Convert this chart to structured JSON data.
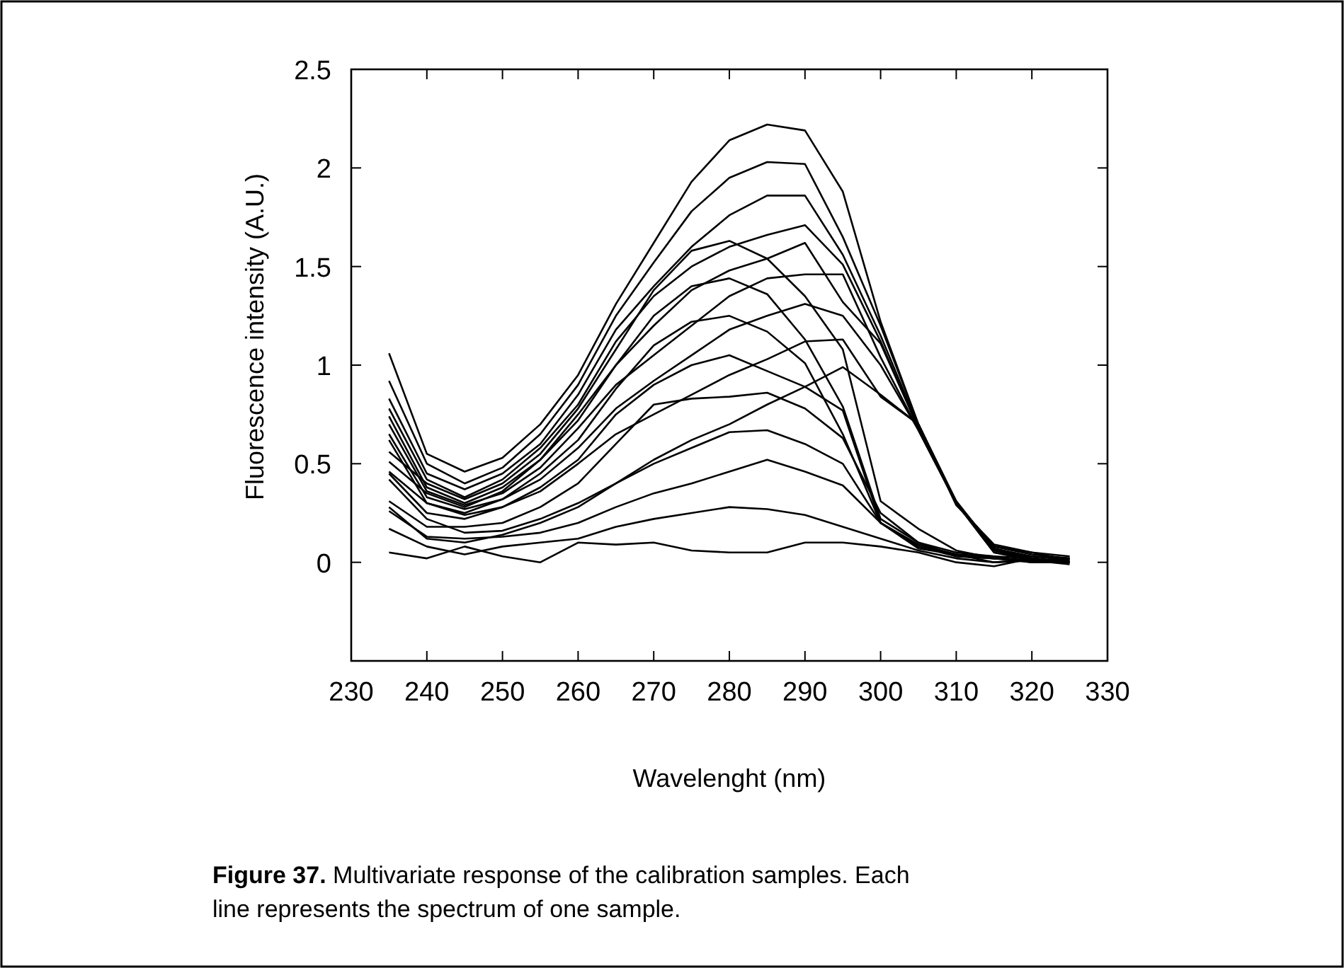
{
  "chart_data": {
    "type": "line",
    "xlabel": "Wavelenght (nm)",
    "ylabel": "Fluorescence intensity (A.U.)",
    "annotations": [
      "Figure 37. Multivariate response of the calibration samples. Each line represents the spectrum of one sample."
    ],
    "x": [
      235,
      240,
      245,
      250,
      255,
      260,
      265,
      270,
      275,
      280,
      285,
      290,
      295,
      300,
      305,
      310,
      315,
      320,
      325
    ],
    "xlim": [
      230,
      330
    ],
    "xticks": [
      230,
      240,
      250,
      260,
      270,
      280,
      290,
      300,
      310,
      320,
      330
    ],
    "ylim": [
      -0.5,
      2.5
    ],
    "yticks": [
      0,
      0.5,
      1,
      1.5,
      2,
      2.5
    ],
    "grid": false,
    "marker": "none",
    "line_style": "solid",
    "series": [
      {
        "color": "#000000",
        "values": [
          1.06,
          0.55,
          0.46,
          0.53,
          0.7,
          0.95,
          1.31,
          1.62,
          1.93,
          2.14,
          2.22,
          2.19,
          1.88,
          1.22,
          0.7,
          0.29,
          0.09,
          0.05,
          0.03
        ]
      },
      {
        "color": "#000000",
        "values": [
          0.92,
          0.5,
          0.4,
          0.48,
          0.65,
          0.9,
          1.25,
          1.52,
          1.78,
          1.95,
          2.03,
          2.02,
          1.65,
          1.2,
          0.7,
          0.3,
          0.08,
          0.04,
          0.02
        ]
      },
      {
        "color": "#000000",
        "values": [
          0.83,
          0.45,
          0.37,
          0.45,
          0.6,
          0.85,
          1.18,
          1.4,
          1.6,
          1.76,
          1.86,
          1.86,
          1.56,
          1.15,
          0.69,
          0.3,
          0.08,
          0.05,
          0.01
        ]
      },
      {
        "color": "#000000",
        "values": [
          0.78,
          0.42,
          0.33,
          0.42,
          0.58,
          0.8,
          1.12,
          1.35,
          1.5,
          1.6,
          1.66,
          1.71,
          1.51,
          1.12,
          0.68,
          0.3,
          0.07,
          0.03,
          0.02
        ]
      },
      {
        "color": "#000000",
        "values": [
          0.74,
          0.38,
          0.3,
          0.38,
          0.52,
          0.75,
          1.0,
          1.2,
          1.38,
          1.48,
          1.54,
          1.62,
          1.32,
          1.11,
          0.68,
          0.31,
          0.07,
          0.02,
          0.0
        ]
      },
      {
        "color": "#000000",
        "values": [
          0.7,
          0.36,
          0.29,
          0.35,
          0.48,
          0.68,
          0.9,
          1.05,
          1.2,
          1.35,
          1.44,
          1.46,
          1.46,
          1.04,
          0.67,
          0.3,
          0.06,
          0.03,
          0.01
        ]
      },
      {
        "color": "#000000",
        "values": [
          0.65,
          0.33,
          0.27,
          0.32,
          0.42,
          0.58,
          0.78,
          0.92,
          1.05,
          1.18,
          1.25,
          1.31,
          1.25,
          1.0,
          0.67,
          0.3,
          0.05,
          0.02,
          0.0
        ]
      },
      {
        "color": "#000000",
        "values": [
          0.62,
          0.3,
          0.24,
          0.28,
          0.36,
          0.5,
          0.65,
          0.75,
          0.85,
          0.95,
          1.03,
          1.12,
          1.13,
          0.84,
          0.7,
          0.3,
          0.05,
          0.01,
          -0.01
        ]
      },
      {
        "color": "#000000",
        "values": [
          0.42,
          0.22,
          0.15,
          0.16,
          0.22,
          0.3,
          0.4,
          0.52,
          0.62,
          0.7,
          0.8,
          0.89,
          0.99,
          0.85,
          0.7,
          0.31,
          0.06,
          0.02,
          0.0
        ]
      },
      {
        "color": "#000000",
        "values": [
          0.56,
          0.4,
          0.32,
          0.4,
          0.55,
          0.78,
          1.08,
          1.38,
          1.58,
          1.63,
          1.54,
          1.35,
          1.08,
          0.31,
          0.17,
          0.06,
          0.02,
          0.01,
          0.0
        ]
      },
      {
        "color": "#000000",
        "values": [
          0.51,
          0.35,
          0.28,
          0.36,
          0.52,
          0.72,
          1.0,
          1.25,
          1.4,
          1.44,
          1.36,
          1.13,
          0.79,
          0.22,
          0.1,
          0.05,
          0.03,
          0.02,
          0.0
        ]
      },
      {
        "color": "#000000",
        "values": [
          0.46,
          0.3,
          0.25,
          0.32,
          0.45,
          0.62,
          0.88,
          1.1,
          1.22,
          1.25,
          1.17,
          1.01,
          0.65,
          0.2,
          0.09,
          0.04,
          0.02,
          0.01,
          0.0
        ]
      },
      {
        "color": "#000000",
        "values": [
          0.45,
          0.25,
          0.22,
          0.28,
          0.38,
          0.52,
          0.75,
          0.9,
          1.0,
          1.05,
          0.97,
          0.89,
          0.77,
          0.2,
          0.08,
          0.04,
          0.03,
          0.0,
          0.02
        ]
      },
      {
        "color": "#000000",
        "values": [
          0.31,
          0.18,
          0.18,
          0.2,
          0.28,
          0.4,
          0.6,
          0.8,
          0.83,
          0.84,
          0.86,
          0.78,
          0.63,
          0.25,
          0.1,
          0.03,
          0.02,
          0.0,
          0.0
        ]
      },
      {
        "color": "#000000",
        "values": [
          0.28,
          0.12,
          0.1,
          0.14,
          0.2,
          0.28,
          0.4,
          0.5,
          0.58,
          0.66,
          0.67,
          0.6,
          0.5,
          0.2,
          0.08,
          0.03,
          0.02,
          0.01,
          0.0
        ]
      },
      {
        "color": "#000000",
        "values": [
          0.26,
          0.13,
          0.12,
          0.13,
          0.15,
          0.2,
          0.28,
          0.35,
          0.4,
          0.46,
          0.52,
          0.46,
          0.39,
          0.2,
          0.07,
          0.04,
          0.0,
          0.01,
          0.0
        ]
      },
      {
        "color": "#000000",
        "values": [
          0.17,
          0.08,
          0.04,
          0.08,
          0.1,
          0.12,
          0.18,
          0.22,
          0.25,
          0.28,
          0.27,
          0.24,
          0.18,
          0.12,
          0.06,
          0.02,
          0.0,
          0.01,
          0.0
        ]
      },
      {
        "color": "#000000",
        "values": [
          0.05,
          0.02,
          0.08,
          0.03,
          0.0,
          0.1,
          0.09,
          0.1,
          0.06,
          0.05,
          0.05,
          0.1,
          0.1,
          0.08,
          0.05,
          0.0,
          -0.02,
          0.02,
          0.0
        ]
      }
    ]
  }
}
